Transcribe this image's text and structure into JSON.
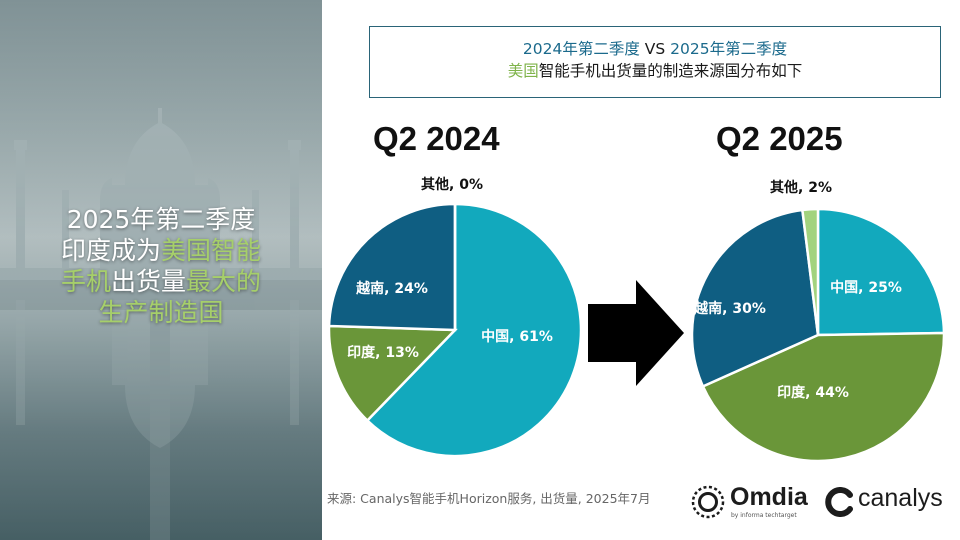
{
  "headline": {
    "line1": "2025年第二季度",
    "line2_white": "印度成为",
    "line2_green": "美国智能",
    "line3_green": "手机",
    "line3_white": "出货量",
    "line3_green2": "最大的",
    "line4_green": "生产制造国"
  },
  "title": {
    "line1_a": "2024年第二季度",
    "line1_b": " VS ",
    "line1_c": "2025年第二季度",
    "line2_a": "美国",
    "line2_b": "智能手机出货量的制造来源国分布如下"
  },
  "chart_data": [
    {
      "type": "pie",
      "title": "Q2 2024",
      "categories": [
        "中国",
        "印度",
        "越南",
        "其他"
      ],
      "values": [
        61,
        13,
        24,
        0
      ],
      "labels": [
        "中国, 61%",
        "印度, 13%",
        "越南, 24%",
        "其他, 0%"
      ],
      "colors": [
        "#12a9bd",
        "#6a9639",
        "#0f5e82",
        "#a2d37e"
      ]
    },
    {
      "type": "pie",
      "title": "Q2 2025",
      "categories": [
        "中国",
        "印度",
        "越南",
        "其他"
      ],
      "values": [
        25,
        44,
        30,
        2
      ],
      "labels": [
        "中国, 25%",
        "印度, 44%",
        "越南, 30%",
        "其他, 2%"
      ],
      "colors": [
        "#12a9bd",
        "#6a9639",
        "#0f5e82",
        "#a2d37e"
      ]
    }
  ],
  "footer": {
    "source": "来源: Canalys智能手机Horizon服务, 出货量, 2025年7月",
    "omdia_name": "Omdia",
    "omdia_sub": "by informa techtarget",
    "canalys_name": "canalys"
  }
}
